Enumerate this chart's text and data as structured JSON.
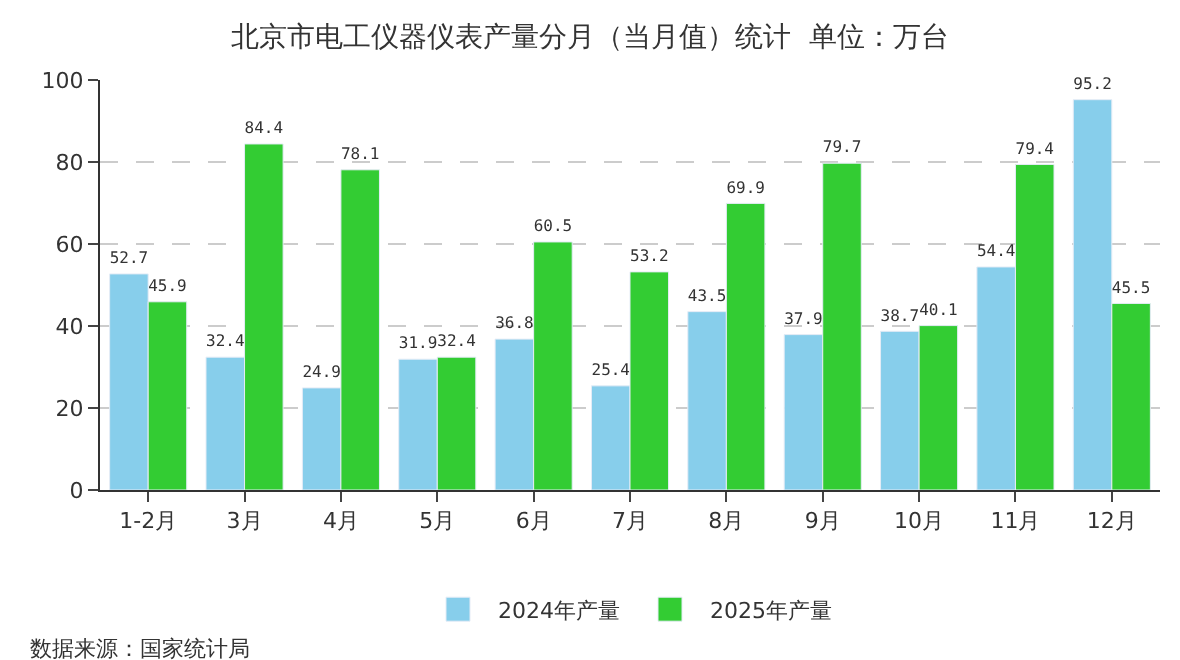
{
  "chart_data": {
    "type": "bar",
    "title": "北京市电工仪器仪表产量分月（当月值）统计  单位：万台",
    "categories": [
      "1-2月",
      "3月",
      "4月",
      "5月",
      "6月",
      "7月",
      "8月",
      "9月",
      "10月",
      "11月",
      "12月"
    ],
    "series": [
      {
        "name": "2024年产量",
        "color": "#87ceeb",
        "values": [
          52.7,
          32.4,
          24.9,
          31.9,
          36.8,
          25.4,
          43.5,
          37.9,
          38.7,
          54.4,
          95.2
        ]
      },
      {
        "name": "2025年产量",
        "color": "#33cc33",
        "values": [
          45.9,
          84.4,
          78.1,
          32.4,
          60.5,
          53.2,
          69.9,
          79.7,
          40.1,
          79.4,
          45.5
        ]
      }
    ],
    "ylim": [
      0,
      100
    ],
    "yticks": [
      0,
      20,
      40,
      60,
      80,
      100
    ],
    "grid": "y",
    "legend": "bottom",
    "data_labels": true,
    "annotations": [
      "数据来源：国家统计局"
    ]
  }
}
